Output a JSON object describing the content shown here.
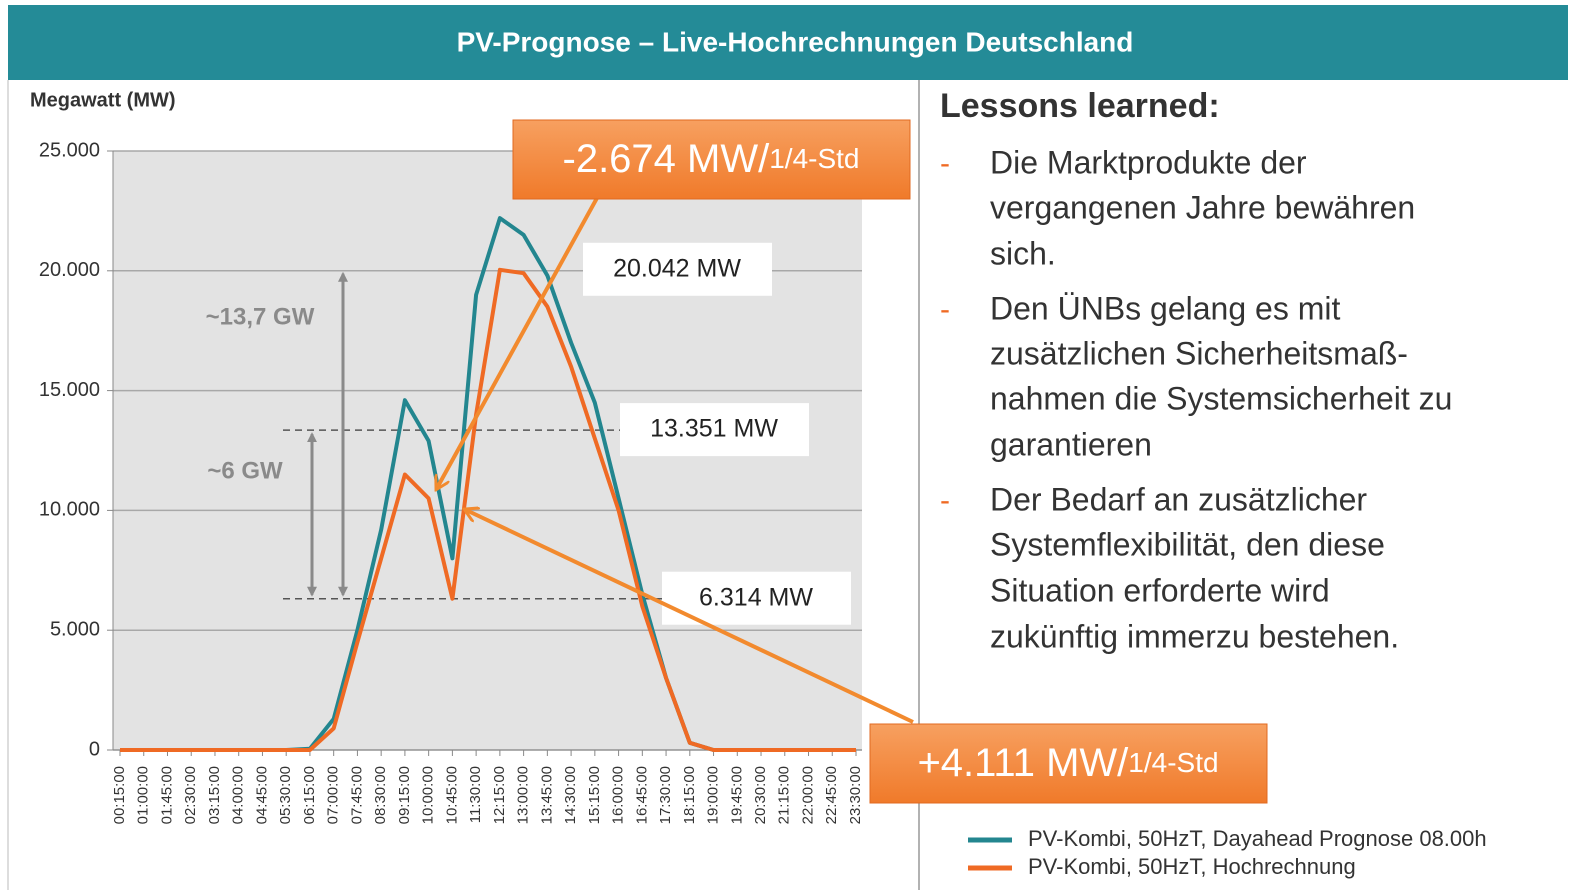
{
  "header": {
    "title": "PV-Prognose – Live-Hochrechnungen Deutschland"
  },
  "chart_data": {
    "type": "line",
    "y_label": "Megawatt (MW)",
    "categories": [
      "00:15:00",
      "01:00:00",
      "01:45:00",
      "02:30:00",
      "03:15:00",
      "04:00:00",
      "04:45:00",
      "05:30:00",
      "06:15:00",
      "07:00:00",
      "07:45:00",
      "08:30:00",
      "09:15:00",
      "10:00:00",
      "10:45:00",
      "11:30:00",
      "12:15:00",
      "13:00:00",
      "13:45:00",
      "14:30:00",
      "15:15:00",
      "16:00:00",
      "16:45:00",
      "17:30:00",
      "18:15:00",
      "19:00:00",
      "19:45:00",
      "20:30:00",
      "21:15:00",
      "22:00:00",
      "22:45:00",
      "23:30:00"
    ],
    "series": [
      {
        "name": "PV-Kombi, 50HzT, Dayahead Prognose 08.00h",
        "color": "#23868f",
        "values": [
          0,
          0,
          0,
          0,
          0,
          0,
          0,
          0,
          50,
          1300,
          5000,
          9200,
          14600,
          12900,
          8000,
          19000,
          22200,
          21500,
          19800,
          17000,
          14500,
          10500,
          6500,
          3000,
          300,
          0,
          0,
          0,
          0,
          0,
          0,
          0
        ]
      },
      {
        "name": "PV-Kombi, 50HzT, Hochrechnung",
        "color": "#ef6a24",
        "values": [
          0,
          0,
          0,
          0,
          0,
          0,
          0,
          0,
          0,
          900,
          4500,
          8000,
          11500,
          10500,
          6314,
          14000,
          20042,
          19900,
          18500,
          16000,
          13000,
          10000,
          6000,
          3000,
          300,
          0,
          0,
          0,
          0,
          0,
          0,
          0
        ]
      }
    ],
    "ylim": [
      0,
      25000
    ],
    "yticks": [
      0,
      {
        "value": 5000,
        "label": "5.000"
      },
      {
        "value": 10000,
        "label": "10.000"
      },
      {
        "value": 15000,
        "label": "15.000"
      },
      {
        "value": 20000,
        "label": "20.000"
      },
      {
        "value": 25000,
        "label": "25.000"
      }
    ],
    "grid": true,
    "annotations": [
      {
        "label": "20.042 MW",
        "value": 20042
      },
      {
        "label": "13.351 MW",
        "value": 13351
      },
      {
        "label": "6.314 MW",
        "value": 6314
      }
    ],
    "spans": [
      {
        "label": "~13,7 GW"
      },
      {
        "label": "~6 GW"
      }
    ],
    "callouts": [
      {
        "text": "-2.674 MW/",
        "unit": "1/4-Std"
      },
      {
        "text": "+4.111 MW/",
        "unit": "1/4-Std"
      }
    ]
  },
  "panel": {
    "title": "Lessons learned:",
    "bullet": "-",
    "items": [
      [
        "Die Marktprodukte der",
        "vergangenen Jahre bewähren",
        "sich."
      ],
      [
        "Den ÜNBs gelang es mit",
        "zusätzlichen  Sicherheitsmaß-",
        "nahmen die Systemsicherheit zu",
        "garantieren"
      ],
      [
        "Der Bedarf an zusätzlicher",
        "Systemflexibilität, den diese",
        "Situation erforderte wird",
        "zukünftig immerzu bestehen."
      ]
    ]
  }
}
